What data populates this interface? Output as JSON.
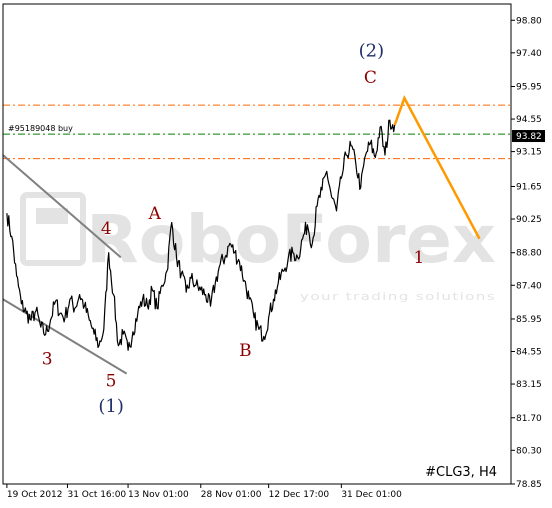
{
  "chart_data": {
    "type": "line",
    "symbol_label": "#CLG3, H4",
    "order_label": "#95189048 buy",
    "current_price": "93.82",
    "watermark": {
      "brand": "RoboForex",
      "tagline": "your trading solutions"
    },
    "y_ticks": [
      "98.80",
      "97.40",
      "95.95",
      "94.55",
      "93.15",
      "91.65",
      "90.25",
      "88.80",
      "87.40",
      "85.95",
      "84.55",
      "83.15",
      "81.70",
      "80.30",
      "78.85"
    ],
    "y_range": [
      78.85,
      99.5
    ],
    "x_ticks": [
      {
        "label": "19 Oct 2012",
        "x": 0
      },
      {
        "label": "31 Oct 16:00",
        "x": 12.5
      },
      {
        "label": "13 Nov 01:00",
        "x": 25
      },
      {
        "label": "28 Nov 01:00",
        "x": 40
      },
      {
        "label": "12 Dec 17:00",
        "x": 54
      },
      {
        "label": "31 Dec 01:00",
        "x": 69
      }
    ],
    "x_range": [
      -0.8,
      104
    ],
    "horizontal_levels": [
      {
        "name": "resistance",
        "value": 95.15,
        "color": "#ff6600",
        "style": "dash-dot"
      },
      {
        "name": "order",
        "value": 93.9,
        "color": "#008000",
        "style": "dash-dot"
      },
      {
        "name": "support",
        "value": 92.85,
        "color": "#ff6600",
        "style": "dash-dot"
      }
    ],
    "price_series": {
      "color": "#000000",
      "points": [
        [
          0,
          90.5
        ],
        [
          1,
          89.5
        ],
        [
          2,
          87.8
        ],
        [
          3,
          86.6
        ],
        [
          4,
          86.2
        ],
        [
          5,
          85.9
        ],
        [
          6,
          86.3
        ],
        [
          7,
          85.6
        ],
        [
          8,
          85.3
        ],
        [
          9,
          85.9
        ],
        [
          10,
          86.7
        ],
        [
          11,
          86.2
        ],
        [
          12,
          86.0
        ],
        [
          13,
          86.8
        ],
        [
          14,
          86.4
        ],
        [
          15,
          87.0
        ],
        [
          16,
          86.5
        ],
        [
          17,
          85.9
        ],
        [
          18,
          85.3
        ],
        [
          19,
          84.8
        ],
        [
          20,
          85.5
        ],
        [
          21,
          88.8
        ],
        [
          22,
          87.0
        ],
        [
          23,
          84.8
        ],
        [
          24,
          85.3
        ],
        [
          25,
          84.6
        ],
        [
          26,
          85.4
        ],
        [
          27,
          86.2
        ],
        [
          28,
          86.8
        ],
        [
          29,
          86.5
        ],
        [
          30,
          87.2
        ],
        [
          31,
          86.4
        ],
        [
          32,
          87.4
        ],
        [
          33,
          88.0
        ],
        [
          34,
          90.1
        ],
        [
          35,
          88.6
        ],
        [
          36,
          87.9
        ],
        [
          37,
          87.1
        ],
        [
          38,
          87.7
        ],
        [
          39,
          87.4
        ],
        [
          40,
          87.2
        ],
        [
          41,
          87.0
        ],
        [
          42,
          86.5
        ],
        [
          43,
          87.5
        ],
        [
          44,
          88.3
        ],
        [
          45,
          88.6
        ],
        [
          46,
          89.2
        ],
        [
          47,
          88.8
        ],
        [
          48,
          88.4
        ],
        [
          49,
          87.6
        ],
        [
          50,
          86.8
        ],
        [
          51,
          86.0
        ],
        [
          52,
          85.5
        ],
        [
          53,
          85.2
        ],
        [
          54,
          86.0
        ],
        [
          55,
          86.8
        ],
        [
          56,
          87.5
        ],
        [
          57,
          88.0
        ],
        [
          58,
          88.5
        ],
        [
          59,
          88.8
        ],
        [
          60,
          88.6
        ],
        [
          61,
          89.4
        ],
        [
          62,
          90.0
        ],
        [
          63,
          89.2
        ],
        [
          64,
          90.8
        ],
        [
          65,
          91.5
        ],
        [
          66,
          92.3
        ],
        [
          67,
          91.2
        ],
        [
          68,
          90.6
        ],
        [
          69,
          92.0
        ],
        [
          70,
          93.0
        ],
        [
          71,
          93.4
        ],
        [
          72,
          92.6
        ],
        [
          73,
          91.6
        ],
        [
          74,
          93.0
        ],
        [
          75,
          93.5
        ],
        [
          76,
          92.9
        ],
        [
          77,
          94.2
        ],
        [
          78,
          93.0
        ],
        [
          79,
          94.5
        ],
        [
          80,
          94.3
        ]
      ]
    },
    "channel_lines": [
      {
        "from": [
          -0.8,
          93.0
        ],
        "to": [
          23.5,
          88.6
        ]
      },
      {
        "from": [
          -0.8,
          86.8
        ],
        "to": [
          24.7,
          83.6
        ]
      }
    ],
    "projection": {
      "color": "#ff9900",
      "points": [
        [
          80,
          94.3
        ],
        [
          82,
          95.45
        ],
        [
          97.5,
          89.4
        ]
      ]
    },
    "wave_labels": [
      {
        "text": "4",
        "x": 20.5,
        "y": 89.6,
        "color": "red"
      },
      {
        "text": "A",
        "x": 30.5,
        "y": 90.25,
        "color": "red"
      },
      {
        "text": "3",
        "x": 8.3,
        "y": 84.0,
        "color": "red"
      },
      {
        "text": "5",
        "x": 21.5,
        "y": 83.05,
        "color": "red"
      },
      {
        "text": "(1)",
        "x": 21.5,
        "y": 81.95,
        "color": "blue"
      },
      {
        "text": "B",
        "x": 49.2,
        "y": 84.35,
        "color": "red"
      },
      {
        "text": "(2)",
        "x": 75.2,
        "y": 97.25,
        "color": "blue"
      },
      {
        "text": "C",
        "x": 75.0,
        "y": 96.1,
        "color": "red"
      },
      {
        "text": "1",
        "x": 85.0,
        "y": 88.35,
        "color": "red"
      }
    ]
  }
}
